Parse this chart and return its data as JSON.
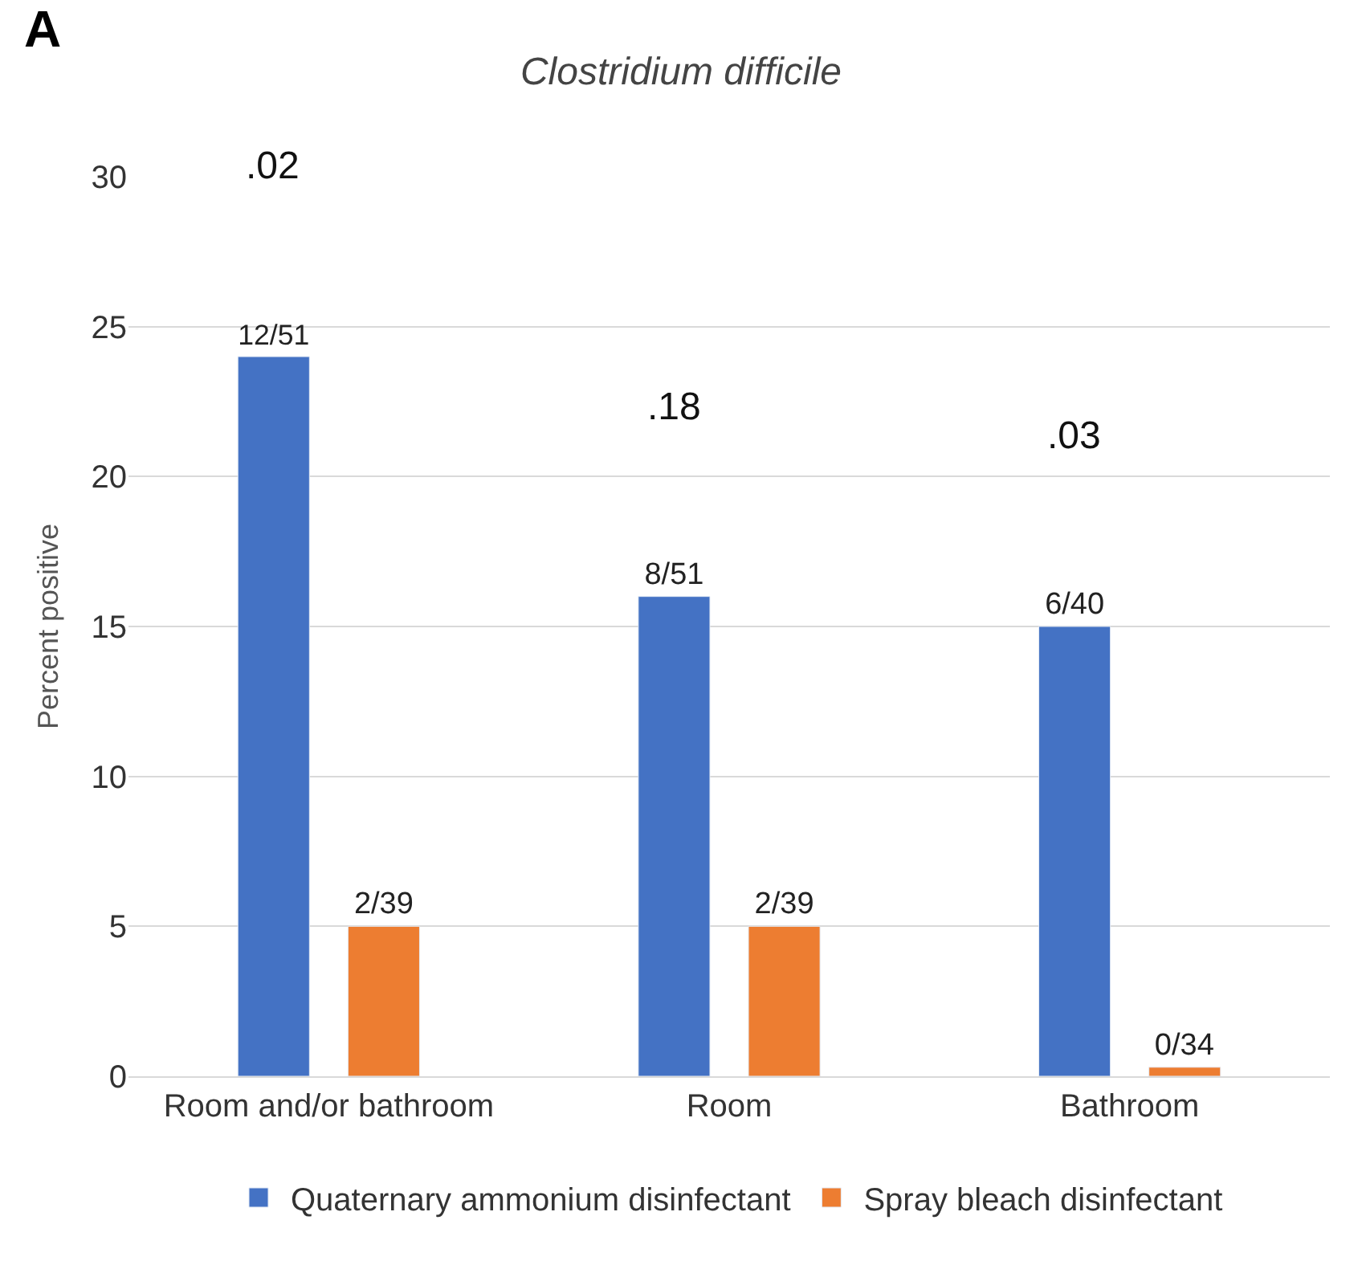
{
  "chart_data": {
    "type": "bar",
    "title": "Clostridium difficile",
    "ylabel": "Percent positive",
    "categories": [
      "Room and/or bathroom",
      "Room",
      "Bathroom"
    ],
    "series": [
      {
        "name": "Quaternary ammonium disinfectant",
        "color": "#4472c4",
        "values": [
          24,
          16,
          15
        ],
        "value_labels": [
          "12/51",
          "8/51",
          "6/40"
        ]
      },
      {
        "name": "Spray bleach disinfectant",
        "color": "#ed7d31",
        "values": [
          5,
          5,
          0.3
        ],
        "value_labels": [
          "2/39",
          "2/39",
          "0/34"
        ]
      }
    ],
    "annotations": [
      "A",
      ".02",
      ".18",
      ".03"
    ],
    "ylim": [
      0,
      30
    ],
    "yticks": [
      0,
      5,
      10,
      15,
      20,
      25,
      30
    ],
    "grid": "y",
    "legend": "bottom"
  }
}
